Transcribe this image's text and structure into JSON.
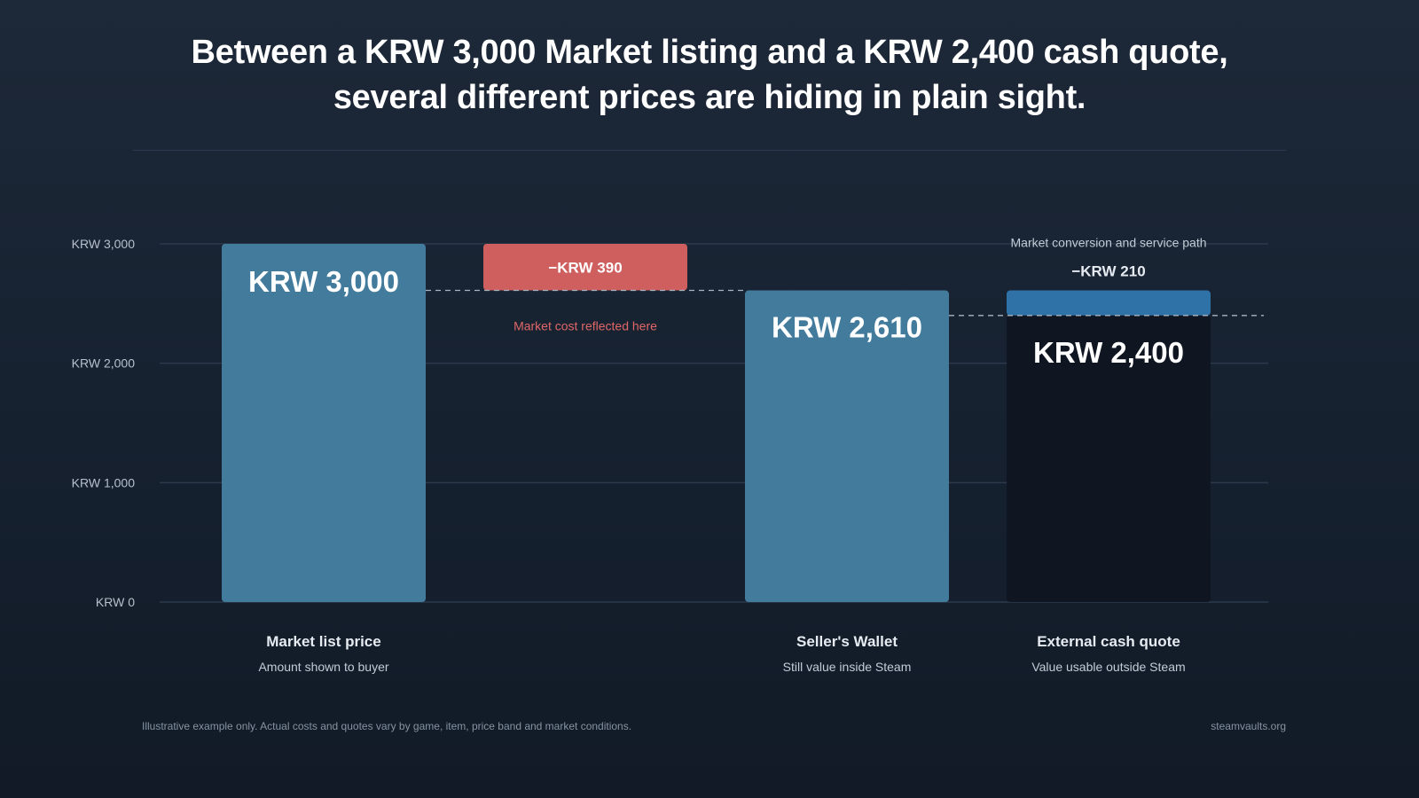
{
  "title_lines": [
    "Between a KRW 3,000 Market listing and a KRW 2,400 cash quote,",
    "several different prices are hiding in plain sight."
  ],
  "footnote": "Illustrative example only. Actual costs and quotes vary by game, item, price band and market conditions.",
  "source": "steamvaults.org",
  "colors": {
    "bar": "#437b9d",
    "deduction_market": "#cf5e5e",
    "deduction_service": "#2e72a8",
    "cash_bar": "#0f1621",
    "grid": "#2b3a4d",
    "dashed": "#aab4c0",
    "tick": "#b7c0cc",
    "category": "#e6ebf1",
    "sub": "#c3ccd6",
    "note_red": "#e06767",
    "note_light": "#c3ccd6"
  },
  "chart_data": {
    "type": "bar",
    "subtype": "waterfall",
    "ylim": [
      0,
      3000
    ],
    "yticks": [
      {
        "value": 0,
        "label": "KRW 0"
      },
      {
        "value": 1000,
        "label": "KRW 1,000"
      },
      {
        "value": 2000,
        "label": "KRW 2,000"
      },
      {
        "value": 3000,
        "label": "KRW 3,000"
      }
    ],
    "grid": true,
    "steps": [
      {
        "kind": "total",
        "value": 3000,
        "value_label": "KRW 3,000",
        "category": "Market list price",
        "subtitle": "Amount shown to buyer"
      },
      {
        "kind": "decrease",
        "from": 3000,
        "to": 2610,
        "value": -390,
        "value_label": "−KRW 390",
        "note": "Market cost reflected here",
        "color_key": "deduction_market"
      },
      {
        "kind": "total",
        "value": 2610,
        "value_label": "KRW 2,610",
        "category": "Seller's Wallet",
        "subtitle": "Still value inside Steam"
      },
      {
        "kind": "total_with_decrease",
        "from": 2610,
        "to": 2400,
        "decrease_value": -210,
        "decrease_label": "−KRW 210",
        "decrease_note": "Market conversion and service path",
        "value": 2400,
        "value_label": "KRW 2,400",
        "category": "External cash quote",
        "subtitle": "Value usable outside Steam"
      }
    ]
  }
}
